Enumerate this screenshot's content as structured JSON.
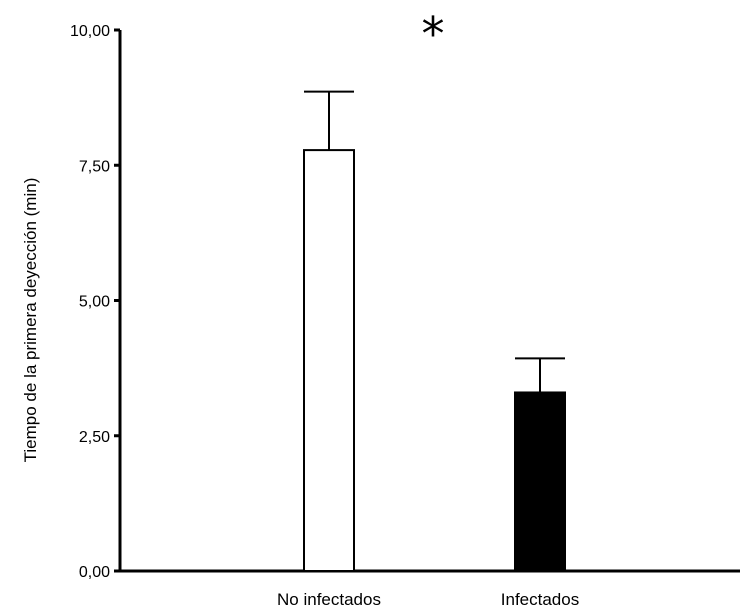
{
  "chart_data": {
    "type": "bar",
    "categories": [
      "No infectados",
      "Infectados"
    ],
    "values": [
      7.78,
      3.3
    ],
    "errors": [
      1.08,
      0.63
    ],
    "ylabel": "Tiempo de la primera deyección (min)",
    "xlabel": "",
    "ylim": [
      0,
      10
    ],
    "yticks": [
      "0,00",
      "2,50",
      "5,00",
      "7,50",
      "10,00"
    ],
    "ytick_values": [
      0,
      2.5,
      5,
      7.5,
      10
    ],
    "bar_fills": [
      "#ffffff",
      "#000000"
    ],
    "annotation": "*",
    "grid": false
  }
}
